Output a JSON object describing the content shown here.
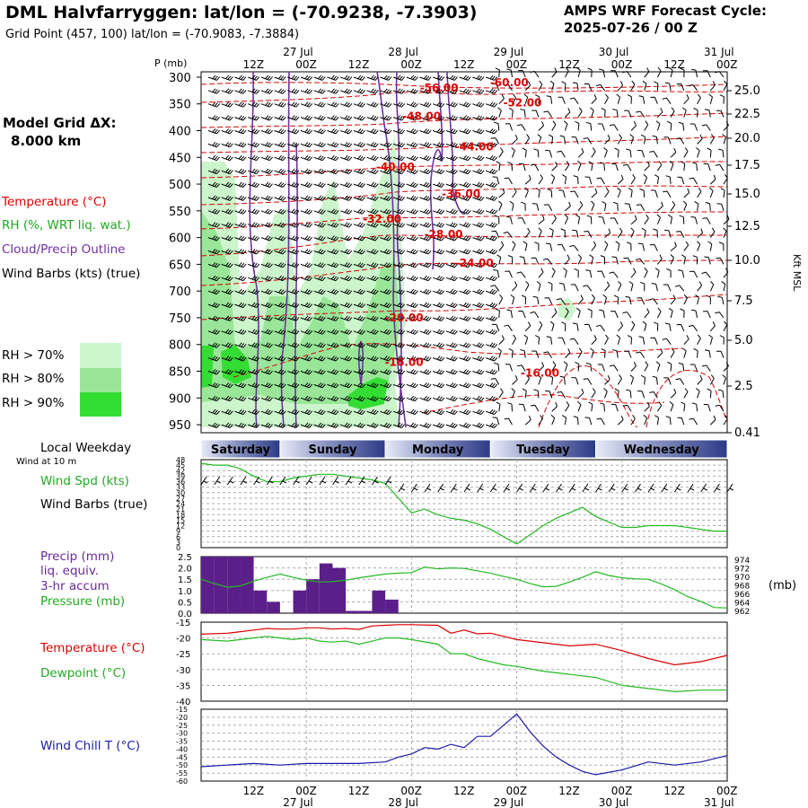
{
  "header": {
    "title": "DML Halvfarryggen:  lat/lon = (-70.9238, -7.3903)",
    "grid_point": "Grid Point (457, 100) lat/lon = (-70.9083, -7.3884)",
    "cycle_line1": "AMPS WRF Forecast Cycle:",
    "cycle_line2": "2025-07-26 / 00  Z",
    "model_grid_line1": "Model Grid ΔX:",
    "model_grid_line2": "8.000 km"
  },
  "legend": {
    "temperature": "Temperature (°C)",
    "rh": "RH (%, WRT liq. wat.)",
    "cloud": "Cloud/Precip Outline",
    "wind": "Wind Barbs (kts) (true)",
    "rh70": "RH > 70%",
    "rh80": "RH > 80%",
    "rh90": "RH > 90%"
  },
  "colors": {
    "temperature": "#dd0000",
    "rh70": "#ccf5cc",
    "rh80": "#99e699",
    "rh90": "#33dd33",
    "cloud": "#7030a0",
    "precip": "#5b1f8a",
    "pressure": "#22bb22",
    "windchill": "#1a1aaa"
  },
  "chart_data": [
    {
      "type": "heatmap",
      "description_labels": {
        "pressure_axis_label": "P (mb)",
        "height_axis_label": "Kft MSL"
      },
      "x_top_ticks": [
        "12Z",
        "00Z",
        "12Z",
        "00Z",
        "12Z",
        "00Z",
        "12Z",
        "00Z",
        "12Z",
        "00Z"
      ],
      "x_date_labels": [
        "27 Jul",
        "28 Jul",
        "29 Jul",
        "30 Jul",
        "31 Jul"
      ],
      "forecast_hours_range": [
        0,
        120
      ],
      "pressure_ticks": [
        300,
        350,
        400,
        450,
        500,
        550,
        600,
        650,
        700,
        750,
        800,
        850,
        900,
        950
      ],
      "height_ticks": [
        "25.0",
        "22.5",
        "20.0",
        "17.5",
        "15.0",
        "12.5",
        "10.0",
        "7.5",
        "5.0",
        "2.5",
        "0.41"
      ],
      "temperature_contour_labels": [
        {
          "label": "-56.00",
          "hour": 54,
          "p": 320
        },
        {
          "label": "-60.00",
          "hour": 70,
          "p": 310
        },
        {
          "label": "-52.00",
          "hour": 73,
          "p": 348
        },
        {
          "label": "-48.00",
          "hour": 50,
          "p": 373
        },
        {
          "label": "-44.00",
          "hour": 62,
          "p": 430
        },
        {
          "label": "-40.00",
          "hour": 44,
          "p": 468
        },
        {
          "label": "-36.00",
          "hour": 59,
          "p": 518
        },
        {
          "label": "-32.00",
          "hour": 41,
          "p": 565
        },
        {
          "label": "-28.00",
          "hour": 55,
          "p": 594
        },
        {
          "label": "-24.00",
          "hour": 62,
          "p": 648
        },
        {
          "label": "-20.00",
          "hour": 46,
          "p": 750
        },
        {
          "label": "-16.00",
          "hour": 46,
          "p": 833
        },
        {
          "label": "-16.00",
          "hour": 77,
          "p": 853
        }
      ]
    },
    {
      "type": "line",
      "title": "Local Weekday",
      "days": [
        "Saturday",
        "Sunday",
        "Monday",
        "Tuesday",
        "Wednesday"
      ]
    },
    {
      "type": "line",
      "subtitle": "Wind at 10 m",
      "ylabel_line1": "Wind Spd (kts)",
      "ylabel_line2": "Wind Barbs (true)",
      "ylim": [
        0,
        48
      ],
      "yticks": [
        "48",
        "45",
        "42",
        "39",
        "36",
        "33",
        "30",
        "27",
        "24",
        "21",
        "18",
        "15",
        "12",
        "9",
        "6",
        "3",
        "0"
      ],
      "x_hours": [
        0,
        3,
        6,
        9,
        12,
        15,
        18,
        21,
        24,
        27,
        30,
        33,
        36,
        39,
        42,
        45,
        48,
        51,
        54,
        57,
        60,
        63,
        66,
        69,
        72,
        75,
        78,
        81,
        84,
        87,
        90,
        93,
        96,
        99,
        102,
        105,
        108,
        111,
        114,
        117,
        120
      ],
      "series": [
        {
          "values": [
            46,
            45,
            45,
            43,
            39,
            36,
            36,
            38,
            39,
            40,
            40,
            39,
            38,
            37,
            35,
            27,
            19,
            21,
            18,
            16,
            15,
            13,
            10,
            6,
            2,
            7,
            12,
            16,
            19,
            22,
            17,
            14,
            11,
            11,
            12,
            12,
            12,
            11,
            10,
            9,
            9
          ]
        }
      ]
    },
    {
      "type": "bar",
      "ylabel_line1": "Precip (mm)",
      "ylabel_line2": "liq. equiv.",
      "ylabel_line3": "3-hr accum",
      "ylabel_line4": "Pressure (mb)",
      "y_left_ticks": [
        "2.5",
        "2.0",
        "1.5",
        "1.0",
        "0.5",
        "0.0"
      ],
      "y_right_ticks": [
        "974",
        "972",
        "970",
        "968",
        "966",
        "964",
        "962"
      ],
      "y_right_unit": "(mb)",
      "ylim_precip": [
        0,
        2.5
      ],
      "ylim_pressure": [
        962,
        974
      ],
      "precip_bars": [
        {
          "start_hour": 0,
          "value": 2.5
        },
        {
          "start_hour": 3,
          "value": 2.5
        },
        {
          "start_hour": 6,
          "value": 2.5
        },
        {
          "start_hour": 9,
          "value": 2.5
        },
        {
          "start_hour": 12,
          "value": 1.0
        },
        {
          "start_hour": 15,
          "value": 0.5
        },
        {
          "start_hour": 18,
          "value": 0.0
        },
        {
          "start_hour": 21,
          "value": 1.0
        },
        {
          "start_hour": 24,
          "value": 1.5
        },
        {
          "start_hour": 27,
          "value": 2.2
        },
        {
          "start_hour": 30,
          "value": 2.0
        },
        {
          "start_hour": 33,
          "value": 0.1
        },
        {
          "start_hour": 36,
          "value": 0.1
        },
        {
          "start_hour": 39,
          "value": 1.0
        },
        {
          "start_hour": 42,
          "value": 0.6
        }
      ],
      "pressure_hours": [
        0,
        3,
        6,
        9,
        12,
        15,
        18,
        21,
        24,
        27,
        30,
        33,
        36,
        39,
        42,
        45,
        48,
        51,
        54,
        57,
        60,
        63,
        66,
        69,
        72,
        75,
        78,
        81,
        84,
        87,
        90,
        93,
        96,
        99,
        102,
        105,
        108,
        111,
        114,
        117,
        120
      ],
      "pressure_values": [
        969.2,
        968.3,
        967.5,
        967.8,
        968.8,
        969.6,
        970.3,
        969.6,
        969.0,
        968.6,
        968.7,
        969.0,
        969.5,
        969.9,
        970.3,
        970.5,
        970.6,
        971.8,
        971.4,
        971.6,
        971.5,
        971.0,
        970.5,
        969.8,
        969.2,
        968.3,
        967.6,
        967.7,
        968.6,
        969.6,
        970.8,
        970.0,
        969.5,
        969.3,
        969.2,
        968.2,
        967.0,
        965.5,
        964.5,
        963.2,
        963.1
      ]
    },
    {
      "type": "line",
      "ylabel_line1": "Temperature (°C)",
      "ylabel_line2": "Dewpoint (°C)",
      "ylim": [
        -40,
        -15
      ],
      "yticks": [
        "-15",
        "-20",
        "-25",
        "-30",
        "-35",
        "-40"
      ],
      "x_hours": [
        0,
        6,
        9,
        12,
        15,
        18,
        21,
        24,
        27,
        30,
        33,
        36,
        39,
        42,
        45,
        48,
        54,
        57,
        60,
        63,
        66,
        69,
        72,
        78,
        84,
        90,
        96,
        102,
        108,
        114,
        120
      ],
      "series": [
        {
          "name": "Temperature (°C)",
          "values": [
            -18.8,
            -18.5,
            -18.0,
            -17.5,
            -17.0,
            -17.2,
            -17.2,
            -16.8,
            -16.8,
            -17.2,
            -17.0,
            -17.3,
            -16.2,
            -16.0,
            -15.8,
            -15.8,
            -16.0,
            -18.5,
            -17.5,
            -18.7,
            -18.5,
            -19.5,
            -20.5,
            -21.5,
            -22.5,
            -22.0,
            -24.0,
            -26.5,
            -28.5,
            -27.5,
            -25.5
          ]
        },
        {
          "name": "Dewpoint (°C)",
          "values": [
            -20.5,
            -21.0,
            -20.5,
            -20.0,
            -19.5,
            -20.0,
            -20.5,
            -20.0,
            -21.0,
            -21.3,
            -21.0,
            -22.0,
            -21.0,
            -20.0,
            -20.0,
            -20.5,
            -22.0,
            -25.0,
            -25.0,
            -26.5,
            -27.5,
            -28.5,
            -29.0,
            -30.5,
            -31.5,
            -32.5,
            -35.0,
            -36.0,
            -37.0,
            -36.5,
            -36.5
          ]
        }
      ]
    },
    {
      "type": "line",
      "ylabel": "Wind Chill T (°C)",
      "ylim": [
        -60,
        -15
      ],
      "yticks": [
        "-15",
        "-20",
        "-25",
        "-30",
        "-35",
        "-40",
        "-45",
        "-50",
        "-55",
        "-60"
      ],
      "x_hours": [
        0,
        6,
        12,
        18,
        24,
        30,
        36,
        42,
        45,
        48,
        51,
        54,
        57,
        60,
        63,
        66,
        69,
        72,
        75,
        78,
        81,
        84,
        87,
        90,
        96,
        102,
        108,
        114,
        120
      ],
      "series": [
        {
          "name": "Wind Chill T (°C)",
          "values": [
            -51,
            -50,
            -49,
            -50,
            -49,
            -49,
            -49,
            -48,
            -45,
            -43,
            -39,
            -40,
            -37,
            -39,
            -32,
            -32,
            -25,
            -18,
            -29,
            -38,
            -45,
            -50,
            -54,
            -56,
            -53,
            -48,
            -50,
            -48,
            -44
          ]
        }
      ]
    },
    {
      "type": "line",
      "x_bottom_ticks": [
        "12Z",
        "00Z",
        "12Z",
        "00Z",
        "12Z",
        "00Z",
        "12Z",
        "00Z",
        "12Z",
        "00Z"
      ],
      "x_date_labels": [
        "27 Jul",
        "28 Jul",
        "29 Jul",
        "30 Jul",
        "31 Jul"
      ]
    }
  ]
}
